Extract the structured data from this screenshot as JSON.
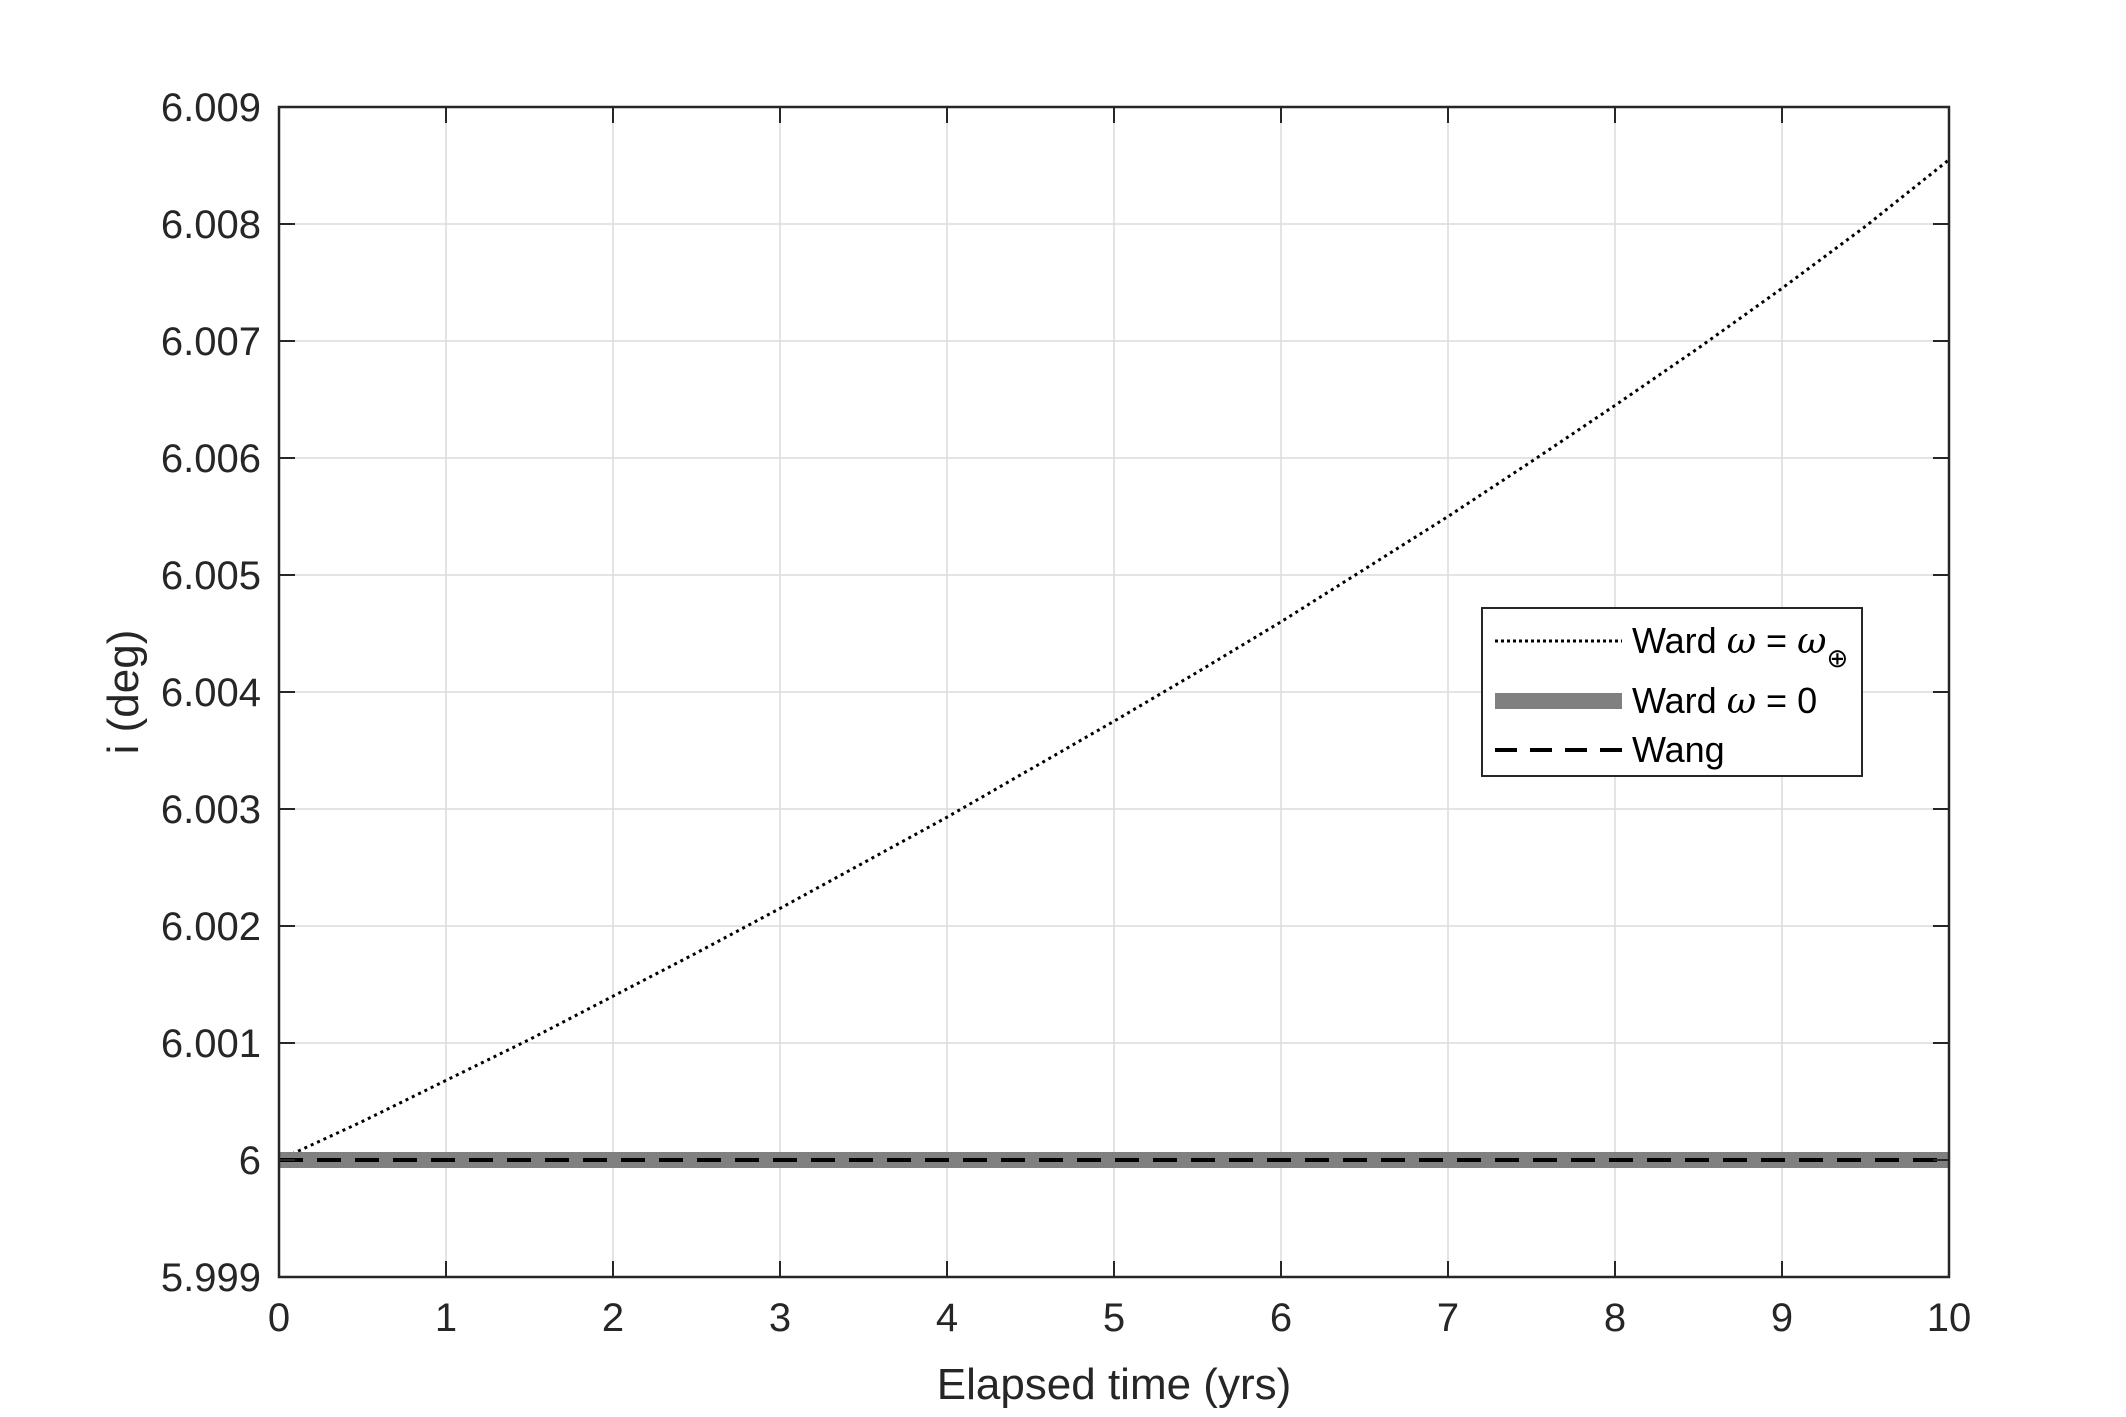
{
  "chart_data": {
    "type": "line",
    "title": "",
    "xlabel": "Elapsed time (yrs)",
    "ylabel": "i (deg)",
    "xlim": [
      0,
      10
    ],
    "ylim": [
      5.999,
      6.009
    ],
    "xticks": [
      "0",
      "1",
      "2",
      "3",
      "4",
      "5",
      "6",
      "7",
      "8",
      "9",
      "10"
    ],
    "yticks": [
      "5.999",
      "6",
      "6.001",
      "6.002",
      "6.003",
      "6.004",
      "6.005",
      "6.006",
      "6.007",
      "6.008",
      "6.009"
    ],
    "grid": true,
    "legend_position": "right",
    "series": [
      {
        "name": "Ward ω = ω⊕",
        "label_parts": {
          "prefix": "Ward ",
          "symbol": "ω",
          "mid": " = ",
          "symbol2": "ω",
          "subscript": "⊕"
        },
        "style": "dotted",
        "color": "#000000",
        "x": [
          0,
          0.5,
          1,
          1.5,
          2,
          2.5,
          3,
          3.5,
          4,
          4.5,
          5,
          5.5,
          6,
          6.5,
          7,
          7.5,
          8,
          8.5,
          9,
          9.5,
          10
        ],
        "y": [
          6.0,
          6.00033,
          6.00068,
          6.00103,
          6.0014,
          6.00177,
          6.00215,
          6.00254,
          6.00293,
          6.00334,
          6.00375,
          6.00417,
          6.0046,
          6.00505,
          6.0055,
          6.00597,
          6.00645,
          6.00694,
          6.00745,
          6.00798,
          6.00855
        ]
      },
      {
        "name": "Ward ω = 0",
        "label_parts": {
          "prefix": "Ward ",
          "symbol": "ω",
          "mid": " = 0"
        },
        "style": "solid-thick",
        "color": "#808080",
        "x": [
          0,
          10
        ],
        "y": [
          6.0,
          6.0
        ]
      },
      {
        "name": "Wang",
        "label_parts": {
          "prefix": "Wang"
        },
        "style": "dashed",
        "color": "#000000",
        "x": [
          0,
          10
        ],
        "y": [
          6.0,
          6.0
        ]
      }
    ]
  }
}
